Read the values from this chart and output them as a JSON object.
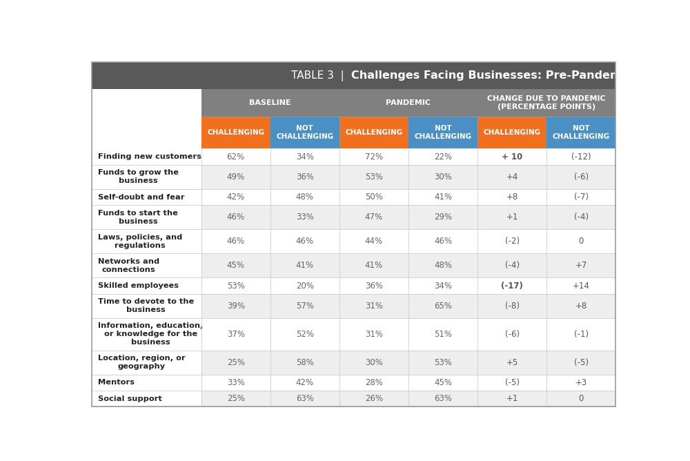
{
  "title_left": "TABLE 3  |  ",
  "title_right": "Challenges Facing Businesses: Pre-Pandemic and Pandemic",
  "title_bg": "#595959",
  "header1_bg": "#808080",
  "header2_orange_bg": "#f07020",
  "header2_blue_bg": "#4a90c4",
  "row_bg_odd": "#eeeeee",
  "row_bg_even": "#ffffff",
  "col_headers_group": [
    "BASELINE",
    "PANDEMIC",
    "CHANGE DUE TO PANDEMIC\n(PERCENTAGE POINTS)"
  ],
  "col_headers_sub": [
    "CHALLENGING",
    "NOT\nCHALLENGING",
    "CHALLENGING",
    "NOT\nCHALLENGING",
    "CHALLENGING",
    "NOT\nCHALLENGING"
  ],
  "col_sub_colors": [
    "orange",
    "blue",
    "orange",
    "blue",
    "orange",
    "blue"
  ],
  "rows": [
    {
      "label": "Finding new customers",
      "values": [
        "62%",
        "34%",
        "72%",
        "22%",
        "+ 10",
        "(-12)"
      ],
      "bold_cols": [
        4
      ]
    },
    {
      "label": "Funds to grow the\nbusiness",
      "values": [
        "49%",
        "36%",
        "53%",
        "30%",
        "+4",
        "(-6)"
      ],
      "bold_cols": []
    },
    {
      "label": "Self-doubt and fear",
      "values": [
        "42%",
        "48%",
        "50%",
        "41%",
        "+8",
        "(-7)"
      ],
      "bold_cols": []
    },
    {
      "label": "Funds to start the\nbusiness",
      "values": [
        "46%",
        "33%",
        "47%",
        "29%",
        "+1",
        "(-4)"
      ],
      "bold_cols": []
    },
    {
      "label": "Laws, policies, and\nregulations",
      "values": [
        "46%",
        "46%",
        "44%",
        "46%",
        "(-2)",
        "0"
      ],
      "bold_cols": []
    },
    {
      "label": "Networks and\nconnections",
      "values": [
        "45%",
        "41%",
        "41%",
        "48%",
        "(-4)",
        "+7"
      ],
      "bold_cols": []
    },
    {
      "label": "Skilled employees",
      "values": [
        "53%",
        "20%",
        "36%",
        "34%",
        "(-17)",
        "+14"
      ],
      "bold_cols": [
        4
      ]
    },
    {
      "label": "Time to devote to the\nbusiness",
      "values": [
        "39%",
        "57%",
        "31%",
        "65%",
        "(-8)",
        "+8"
      ],
      "bold_cols": []
    },
    {
      "label": "Information, education,\nor knowledge for the\nbusiness",
      "values": [
        "37%",
        "52%",
        "31%",
        "51%",
        "(-6)",
        "(-1)"
      ],
      "bold_cols": []
    },
    {
      "label": "Location, region, or\ngeography",
      "values": [
        "25%",
        "58%",
        "30%",
        "53%",
        "+5",
        "(-5)"
      ],
      "bold_cols": []
    },
    {
      "label": "Mentors",
      "values": [
        "33%",
        "42%",
        "28%",
        "45%",
        "(-5)",
        "+3"
      ],
      "bold_cols": []
    },
    {
      "label": "Social support",
      "values": [
        "25%",
        "63%",
        "26%",
        "63%",
        "+1",
        "0"
      ],
      "bold_cols": []
    }
  ],
  "figsize": [
    10.0,
    6.68
  ],
  "dpi": 100
}
